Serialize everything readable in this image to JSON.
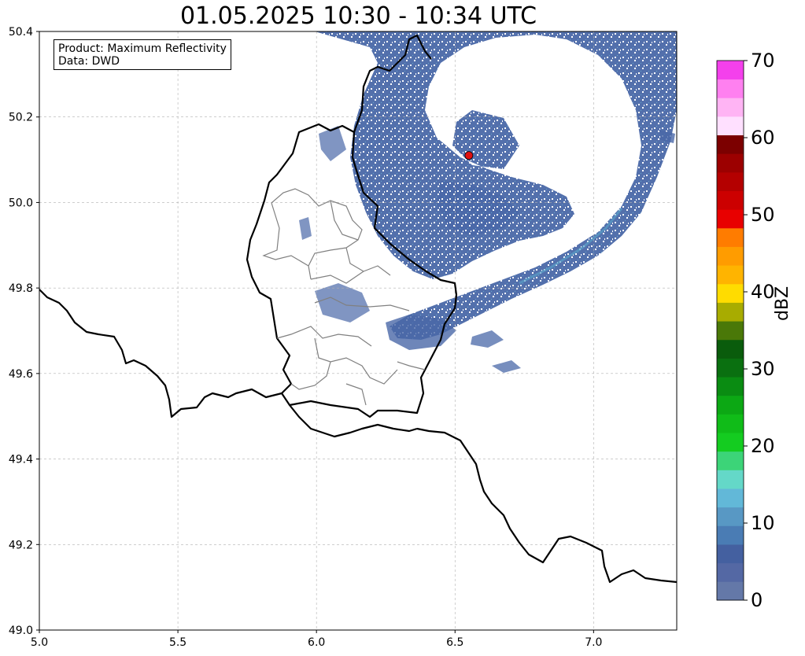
{
  "title": "01.05.2025 10:30 - 10:34 UTC",
  "info": {
    "product": "Product: Maximum Reflectivity",
    "data": "Data: DWD"
  },
  "map": {
    "extent": {
      "lon": [
        5.0,
        7.3
      ],
      "lat": [
        49.0,
        50.4
      ]
    },
    "lon_ticks": [
      {
        "value": 5.0,
        "label": "5.0"
      },
      {
        "value": 5.5,
        "label": "5.5"
      },
      {
        "value": 6.0,
        "label": "6.0"
      },
      {
        "value": 6.5,
        "label": "6.5"
      },
      {
        "value": 7.0,
        "label": "7.0"
      }
    ],
    "lat_ticks": [
      {
        "value": 49.0,
        "label": "49.0"
      },
      {
        "value": 49.2,
        "label": "49.2"
      },
      {
        "value": 49.4,
        "label": "49.4"
      },
      {
        "value": 49.6,
        "label": "49.6"
      },
      {
        "value": 49.8,
        "label": "49.8"
      },
      {
        "value": 50.0,
        "label": "50.0"
      },
      {
        "value": 50.2,
        "label": "50.2"
      },
      {
        "value": 50.4,
        "label": "50.4"
      }
    ],
    "grid": true,
    "radar_site": {
      "lon": 6.55,
      "lat": 50.11,
      "color": "#e01010"
    },
    "echo_color": "#4a68a8",
    "echo_light_color": "#5aa0c8"
  },
  "colorbar": {
    "label": "dBZ",
    "min": 0,
    "max": 70,
    "ticks": [
      {
        "value": 0,
        "label": "0"
      },
      {
        "value": 10,
        "label": "10"
      },
      {
        "value": 20,
        "label": "20"
      },
      {
        "value": 30,
        "label": "30"
      },
      {
        "value": 40,
        "label": "40"
      },
      {
        "value": 50,
        "label": "50"
      },
      {
        "value": 60,
        "label": "60"
      },
      {
        "value": 70,
        "label": "70"
      }
    ],
    "colors": [
      "#6478a8",
      "#5468a4",
      "#4460a0",
      "#4a7cb4",
      "#5898c4",
      "#62b8d8",
      "#64d8c8",
      "#3cd478",
      "#14cc20",
      "#10bc18",
      "#0ca814",
      "#0a8c12",
      "#0a7010",
      "#0a5c0c",
      "#4a7808",
      "#a8ac00",
      "#ffdc00",
      "#ffb400",
      "#ff9c00",
      "#ff7c00",
      "#e80000",
      "#cc0000",
      "#b40000",
      "#9c0000",
      "#7c0000",
      "#ffe0ff",
      "#ffb4f4",
      "#ff80f0",
      "#f440ec"
    ]
  }
}
